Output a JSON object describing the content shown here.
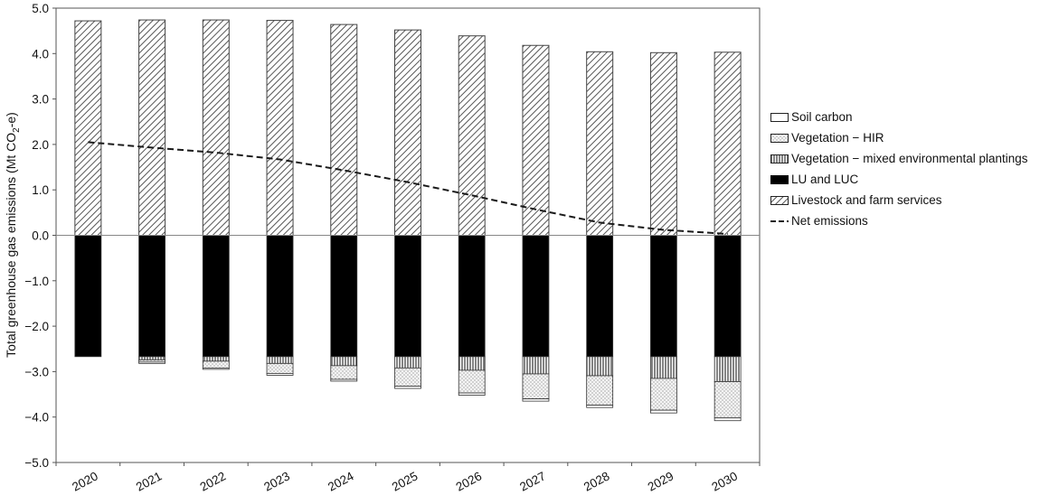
{
  "chart_data": {
    "type": "bar",
    "stacked": true,
    "title": "",
    "ylabel": "Total greenhouse gas emissions (Mt CO2-e)",
    "ylabel_parts": {
      "before": "Total greenhouse gas emissions (Mt CO",
      "sub": "2",
      "after": "-e)"
    },
    "xlabel": "",
    "ylim": [
      -5,
      5
    ],
    "yticks": [
      "5.0",
      "4.0",
      "3.0",
      "2.0",
      "1.0",
      "0.0",
      "−1.0",
      "−2.0",
      "−3.0",
      "−4.0",
      "−5.0"
    ],
    "categories": [
      "2020",
      "2021",
      "2022",
      "2023",
      "2024",
      "2025",
      "2026",
      "2027",
      "2028",
      "2029",
      "2030"
    ],
    "grid": false,
    "legend_position": "right",
    "series": [
      {
        "name": "Soil carbon",
        "pattern": "white",
        "values": [
          0,
          -0.03,
          -0.03,
          -0.04,
          -0.04,
          -0.05,
          -0.05,
          -0.05,
          -0.05,
          -0.06,
          -0.06
        ]
      },
      {
        "name": "Vegetation − HIR",
        "pattern": "dots",
        "values": [
          0,
          -0.05,
          -0.15,
          -0.22,
          -0.3,
          -0.4,
          -0.5,
          -0.55,
          -0.65,
          -0.7,
          -0.8
        ]
      },
      {
        "name": "Vegetation − mixed environmental plantings",
        "pattern": "vertical",
        "values": [
          0,
          -0.07,
          -0.1,
          -0.15,
          -0.2,
          -0.25,
          -0.3,
          -0.38,
          -0.42,
          -0.48,
          -0.55
        ]
      },
      {
        "name": "LU and LUC",
        "pattern": "black",
        "values": [
          -2.67,
          -2.67,
          -2.67,
          -2.67,
          -2.67,
          -2.67,
          -2.67,
          -2.67,
          -2.67,
          -2.67,
          -2.67
        ]
      },
      {
        "name": "Livestock and farm services",
        "pattern": "diagonal",
        "values": [
          4.72,
          4.74,
          4.74,
          4.73,
          4.64,
          4.52,
          4.39,
          4.18,
          4.04,
          4.02,
          4.03
        ]
      }
    ],
    "line": {
      "name": "Net emissions",
      "style": "dashed",
      "values": [
        2.05,
        1.93,
        1.82,
        1.67,
        1.43,
        1.17,
        0.88,
        0.57,
        0.28,
        0.12,
        0.03
      ]
    }
  }
}
